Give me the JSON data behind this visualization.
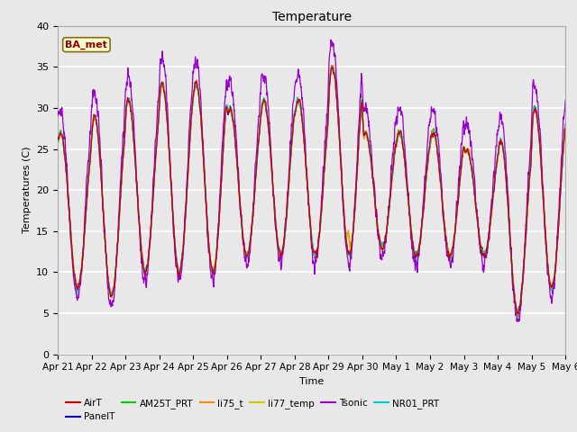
{
  "title": "Temperature",
  "ylabel": "Temperatures (C)",
  "xlabel": "Time",
  "annotation": "BA_met",
  "ylim": [
    0,
    40
  ],
  "series_colors": {
    "AirT": "#cc0000",
    "PanelT": "#0000cc",
    "AM25T_PRT": "#00cc00",
    "li75_t": "#ff8800",
    "li77_temp": "#cccc00",
    "Tsonic": "#9900cc",
    "NR01_PRT": "#00cccc"
  },
  "xtick_labels": [
    "Apr 21",
    "Apr 22",
    "Apr 23",
    "Apr 24",
    "Apr 25",
    "Apr 26",
    "Apr 27",
    "Apr 28",
    "Apr 29",
    "Apr 30",
    "May 1",
    "May 2",
    "May 3",
    "May 4",
    "May 5",
    "May 6"
  ],
  "background_color": "#e8e8e8",
  "grid_color": "#ffffff",
  "fig_bg": "#e8e8e8",
  "yticks": [
    0,
    5,
    10,
    15,
    20,
    25,
    30,
    35,
    40
  ]
}
